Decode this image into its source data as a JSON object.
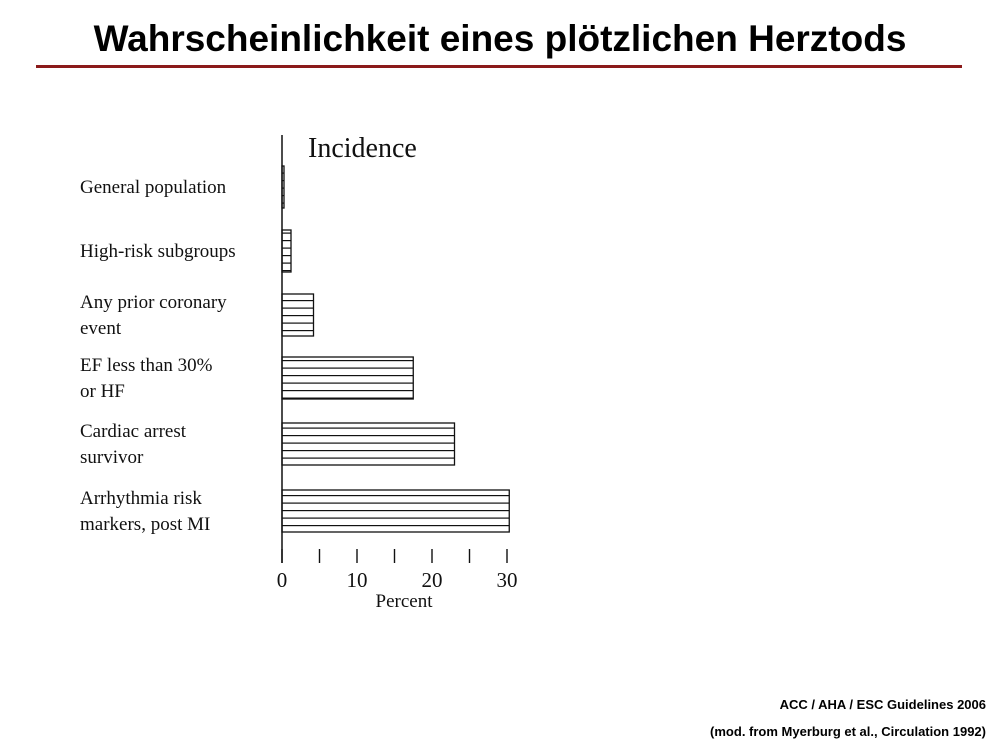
{
  "slide": {
    "title": "Wahrscheinlichkeit eines plötzlichen Herztods",
    "source_line1": "ACC / AHA / ESC Guidelines 2006",
    "source_line2": "(mod. from Myerburg et al., Circulation 1992)",
    "rule_color": "#8b1a1a"
  },
  "chart_data": {
    "type": "bar",
    "orientation": "horizontal",
    "title": "Incidence",
    "xlabel": "Percent",
    "ylabel": "",
    "xlim": [
      0,
      30
    ],
    "x_ticks": [
      "0",
      "10",
      "20",
      "30"
    ],
    "categories": [
      [
        "General population"
      ],
      [
        "High-risk subgroups"
      ],
      [
        "Any prior coronary",
        "event"
      ],
      [
        "EF less than 30%",
        "or HF"
      ],
      [
        "Cardiac arrest",
        "survivor"
      ],
      [
        "Arrhythmia risk",
        "markers, post MI"
      ]
    ],
    "values": [
      0.2,
      1.2,
      4.2,
      17.5,
      23,
      30.3
    ],
    "bar_fill": "horizontal-hatch",
    "grid": false
  }
}
